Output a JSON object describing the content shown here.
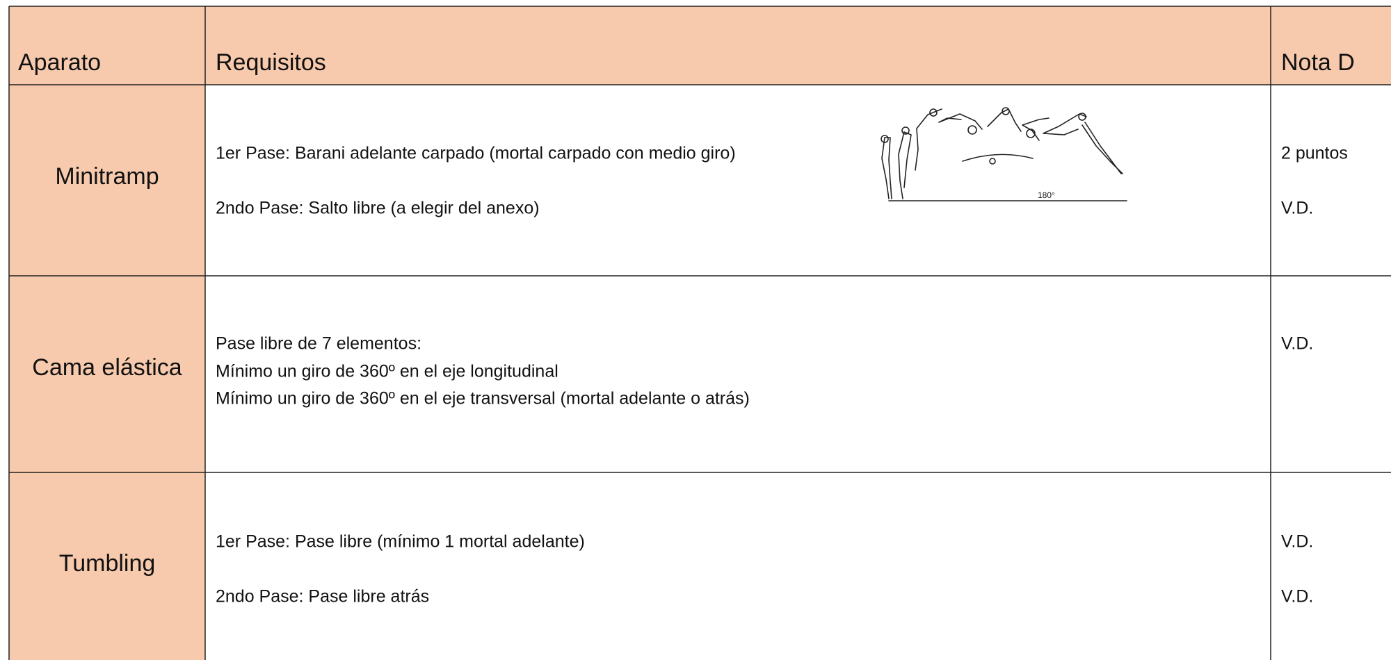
{
  "table": {
    "header": [
      "Aparato",
      "Requisitos",
      "Nota D"
    ],
    "rows": [
      [
        "Minitramp",
        [
          "1er Pase: Barani adelante carpado (mortal carpado con medio giro)",
          "2ndo Pase:  Salto libre (a elegir del anexo)"
        ],
        [
          "2 puntos",
          "V.D."
        ]
      ],
      [
        "Cama elástica",
        [
          "Pase libre de 7 elementos:",
          "Mínimo un giro de 360º en el eje longitudinal",
          "Mínimo un giro de 360º en el eje transversal (mortal adelante o atrás)"
        ],
        [
          "V.D."
        ]
      ],
      [
        "Tumbling",
        [
          "1er Pase: Pase libre (mínimo 1 mortal adelante)",
          "2ndo Pase: Pase libre atrás"
        ],
        [
          "V.D.",
          "V.D."
        ]
      ]
    ],
    "figure_label": "180°"
  }
}
